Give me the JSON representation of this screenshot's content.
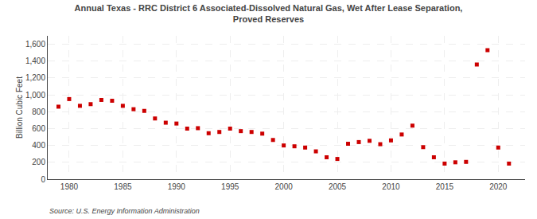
{
  "chart_data": {
    "type": "scatter",
    "title": "Annual Texas - RRC District 6 Associated-Dissolved Natural Gas, Wet After Lease Separation,\nProved Reserves",
    "ylabel": "Billion Cubic Feet",
    "annotations": [
      "Source: U.S. Energy Information Administration"
    ],
    "color": "#cc0000",
    "marker": "square",
    "grid": true,
    "x": [
      1979,
      1980,
      1981,
      1982,
      1983,
      1984,
      1985,
      1986,
      1987,
      1988,
      1989,
      1990,
      1991,
      1992,
      1993,
      1994,
      1995,
      1996,
      1997,
      1998,
      1999,
      2000,
      2001,
      2002,
      2003,
      2004,
      2005,
      2006,
      2007,
      2008,
      2009,
      2010,
      2011,
      2012,
      2013,
      2014,
      2015,
      2016,
      2017,
      2018,
      2019,
      2020,
      2021
    ],
    "values": [
      860,
      950,
      870,
      890,
      940,
      930,
      870,
      830,
      810,
      720,
      670,
      660,
      600,
      605,
      545,
      560,
      600,
      570,
      560,
      540,
      465,
      400,
      390,
      375,
      330,
      260,
      240,
      420,
      440,
      455,
      415,
      460,
      530,
      635,
      380,
      260,
      185,
      200,
      205,
      1360,
      1530,
      375,
      185
    ],
    "xlim": [
      1978,
      2022.5
    ],
    "ylim": [
      0,
      1700
    ],
    "xticks": [
      1980,
      1985,
      1990,
      1995,
      2000,
      2005,
      2010,
      2015,
      2020
    ],
    "yticks": [
      0,
      200,
      400,
      600,
      800,
      {
        "value": 1000,
        "label": "1,000"
      },
      {
        "value": 1200,
        "label": "1,200"
      },
      {
        "value": 1400,
        "label": "1,400"
      },
      {
        "value": 1600,
        "label": "1,600"
      }
    ]
  }
}
